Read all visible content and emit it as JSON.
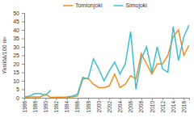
{
  "chart_data": {
    "type": "line",
    "y_label": "Yksilöä/100 m²",
    "x": [
      1986,
      1987,
      1988,
      1989,
      1990,
      1991,
      1992,
      1993,
      1994,
      1995,
      1996,
      1997,
      1998,
      1999,
      2000,
      2001,
      2002,
      2003,
      2004,
      2005,
      2006,
      2007,
      2008,
      2009,
      2010,
      2011,
      2012,
      2013,
      2014,
      2015,
      2016,
      2017
    ],
    "series": [
      {
        "name": "Tornionjoki",
        "color": "#f28c1e",
        "values": [
          0.2,
          0.5,
          0.5,
          0.5,
          2,
          0.2,
          0.3,
          0.3,
          0.3,
          0.5,
          1,
          11,
          11.5,
          8,
          6,
          6,
          7,
          14,
          6,
          8,
          13,
          11,
          26,
          20,
          14,
          20,
          20,
          25,
          36,
          40,
          25,
          31
        ]
      },
      {
        "name": "Simojoki",
        "color": "#3dbfce",
        "values": [
          0.5,
          1,
          2.5,
          2.5,
          1.5,
          4.5,
          null,
          null,
          0.5,
          1,
          2,
          12,
          11,
          23,
          17,
          10,
          16,
          21,
          14,
          20,
          39,
          5,
          23,
          30,
          15,
          30,
          17,
          15,
          42,
          22,
          36,
          43
        ]
      }
    ],
    "xlim": [
      1986,
      2017
    ],
    "xticks": [
      1986,
      1988,
      1990,
      1992,
      1994,
      1996,
      1998,
      2000,
      2002,
      2004,
      2006,
      2008,
      2010,
      2012,
      2014,
      2016
    ],
    "ylim": [
      0,
      50
    ],
    "yticks": [
      0,
      5,
      10,
      15,
      20,
      25,
      30,
      35,
      40,
      45,
      50
    ],
    "grid": false,
    "legend": "top"
  }
}
